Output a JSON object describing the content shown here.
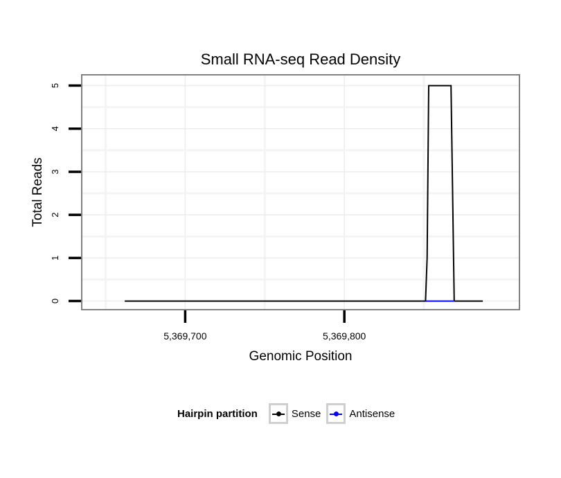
{
  "chart_data": {
    "type": "line",
    "title": "Small RNA-seq Read Density",
    "xlabel": "Genomic Position",
    "ylabel": "Total Reads",
    "xlim": [
      5369635,
      5369910
    ],
    "ylim": [
      -0.2,
      5.25
    ],
    "x_ticks": [
      {
        "value": 5369700,
        "label": "5,369,700"
      },
      {
        "value": 5369800,
        "label": "5,369,800"
      }
    ],
    "x_minor_gridlines": [
      5369650,
      5369750,
      5369850
    ],
    "y_ticks": [
      {
        "value": 0,
        "label": "0"
      },
      {
        "value": 1,
        "label": "1"
      },
      {
        "value": 2,
        "label": "2"
      },
      {
        "value": 3,
        "label": "3"
      },
      {
        "value": 4,
        "label": "4"
      },
      {
        "value": 5,
        "label": "5"
      }
    ],
    "series": [
      {
        "name": "Sense",
        "color": "#000000",
        "points": [
          [
            5369662,
            0
          ],
          [
            5369851,
            0
          ],
          [
            5369852,
            1
          ],
          [
            5369853,
            5
          ],
          [
            5369867,
            5
          ],
          [
            5369869,
            0
          ],
          [
            5369887,
            0
          ]
        ]
      },
      {
        "name": "Antisense",
        "color": "#0000ff",
        "points": [
          [
            5369851,
            0
          ],
          [
            5369869,
            0
          ]
        ]
      }
    ],
    "legend": {
      "title": "Hairpin partition",
      "position": "bottom",
      "entries": [
        {
          "label": "Sense",
          "color": "#000000"
        },
        {
          "label": "Antisense",
          "color": "#0000ff"
        }
      ]
    }
  }
}
